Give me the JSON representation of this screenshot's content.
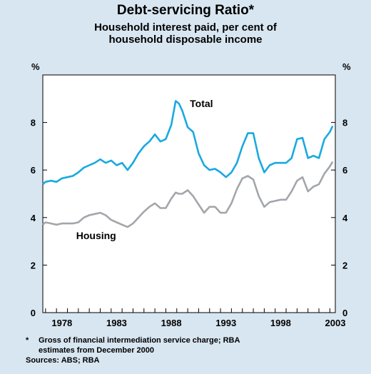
{
  "chart_data": {
    "type": "line",
    "title": "Debt-servicing Ratio*",
    "subtitle": [
      "Household interest paid, per cent of",
      "household disposable income"
    ],
    "y_unit_left": "%",
    "y_unit_right": "%",
    "ylim": [
      0,
      10
    ],
    "yticks": [
      0,
      2,
      4,
      6,
      8
    ],
    "xlim": [
      1976.75,
      2003.5
    ],
    "xticks": [
      1978,
      1983,
      1988,
      1993,
      1998,
      2003
    ],
    "grid": false,
    "series": [
      {
        "name": "Total",
        "color": "#1aa9e0",
        "x": [
          1976.75,
          1977,
          1977.5,
          1978,
          1978.5,
          1979,
          1979.5,
          1980,
          1980.5,
          1981,
          1981.5,
          1982,
          1982.5,
          1983,
          1983.5,
          1984,
          1984.5,
          1985,
          1985.5,
          1986,
          1986.5,
          1987,
          1987.5,
          1988,
          1988.5,
          1988.9,
          1989.2,
          1989.5,
          1990,
          1990.5,
          1991,
          1991.5,
          1992,
          1992.5,
          1993,
          1993.5,
          1994,
          1994.5,
          1995,
          1995.5,
          1996,
          1996.5,
          1997,
          1997.5,
          1998,
          1998.5,
          1999,
          1999.5,
          2000,
          2000.5,
          2001,
          2001.5,
          2002,
          2002.5,
          2003,
          2003.25
        ],
        "values": [
          5.4,
          5.5,
          5.55,
          5.5,
          5.65,
          5.7,
          5.75,
          5.9,
          6.1,
          6.2,
          6.3,
          6.45,
          6.3,
          6.4,
          6.2,
          6.3,
          6.0,
          6.3,
          6.7,
          7.0,
          7.2,
          7.5,
          7.2,
          7.3,
          7.9,
          8.9,
          8.8,
          8.5,
          7.8,
          7.6,
          6.7,
          6.2,
          6.0,
          6.05,
          5.9,
          5.7,
          5.9,
          6.3,
          7.0,
          7.55,
          7.55,
          6.5,
          5.9,
          6.2,
          6.3,
          6.3,
          6.3,
          6.5,
          7.3,
          7.35,
          6.5,
          6.6,
          6.5,
          7.3,
          7.6,
          7.85
        ]
      },
      {
        "name": "Housing",
        "color": "#a3a6aa",
        "x": [
          1976.75,
          1977,
          1977.5,
          1978,
          1978.5,
          1979,
          1979.5,
          1980,
          1980.5,
          1981,
          1981.5,
          1982,
          1982.5,
          1983,
          1983.5,
          1984,
          1984.5,
          1985,
          1985.5,
          1986,
          1986.5,
          1987,
          1987.5,
          1988,
          1988.5,
          1988.9,
          1989.2,
          1989.5,
          1990,
          1990.5,
          1991,
          1991.5,
          1992,
          1992.5,
          1993,
          1993.5,
          1994,
          1994.5,
          1995,
          1995.5,
          1996,
          1996.5,
          1997,
          1997.5,
          1998,
          1998.5,
          1999,
          1999.5,
          2000,
          2000.5,
          2001,
          2001.5,
          2002,
          2002.5,
          2003,
          2003.25
        ],
        "values": [
          3.7,
          3.8,
          3.75,
          3.7,
          3.75,
          3.75,
          3.75,
          3.8,
          4.0,
          4.1,
          4.15,
          4.2,
          4.1,
          3.9,
          3.8,
          3.7,
          3.6,
          3.75,
          4.0,
          4.25,
          4.45,
          4.6,
          4.4,
          4.4,
          4.8,
          5.05,
          5.0,
          5.0,
          5.15,
          4.9,
          4.55,
          4.2,
          4.45,
          4.45,
          4.2,
          4.2,
          4.6,
          5.2,
          5.65,
          5.75,
          5.6,
          4.9,
          4.45,
          4.65,
          4.7,
          4.75,
          4.75,
          5.1,
          5.55,
          5.7,
          5.1,
          5.3,
          5.4,
          5.85,
          6.15,
          6.35
        ]
      }
    ],
    "annotations": [
      {
        "text": "Total",
        "x": 1990.2,
        "y": 8.65
      },
      {
        "text": "Housing",
        "x": 1979.8,
        "y": 3.1
      }
    ],
    "footnote_marker": "*",
    "footnote": "Gross of financial intermediation service charge; RBA estimates from December 2000",
    "sources": "Sources: ABS; RBA"
  }
}
